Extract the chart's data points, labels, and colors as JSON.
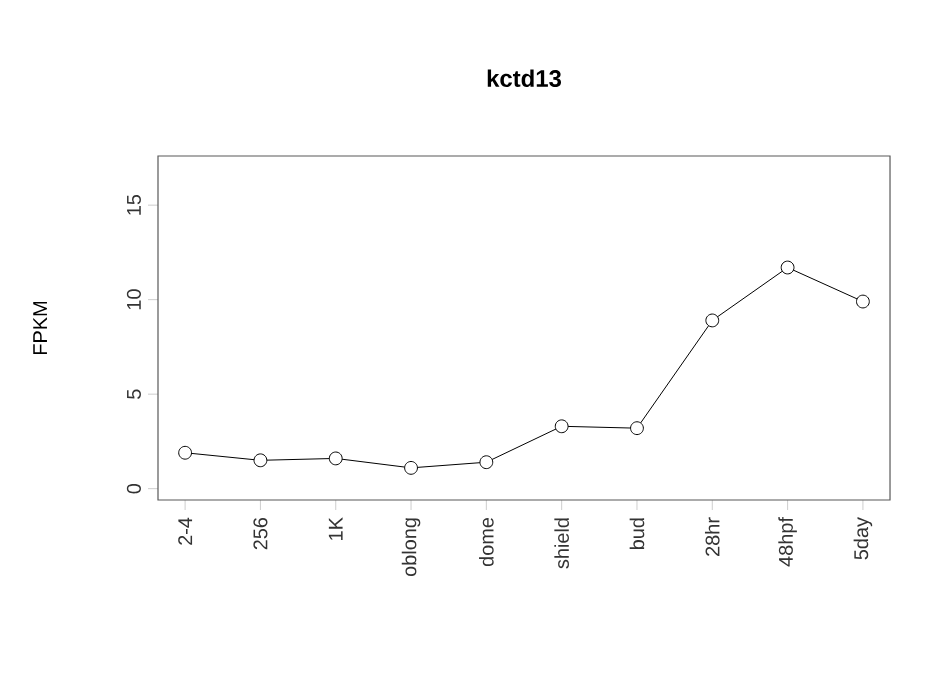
{
  "chart_data": {
    "type": "line",
    "title": "kctd13",
    "ylabel": "FPKM",
    "categories": [
      "2-4",
      "256",
      "1K",
      "oblong",
      "dome",
      "shield",
      "bud",
      "28hr",
      "48hpf",
      "5day"
    ],
    "values": [
      1.9,
      1.5,
      1.6,
      1.1,
      1.4,
      3.3,
      3.2,
      8.9,
      11.7,
      9.9
    ],
    "color": "#000000",
    "marker": "circle",
    "line_style": "solid",
    "ylim": [
      -0.6,
      17.6
    ],
    "yticks": [
      0,
      5,
      10,
      15
    ],
    "grid": false
  }
}
